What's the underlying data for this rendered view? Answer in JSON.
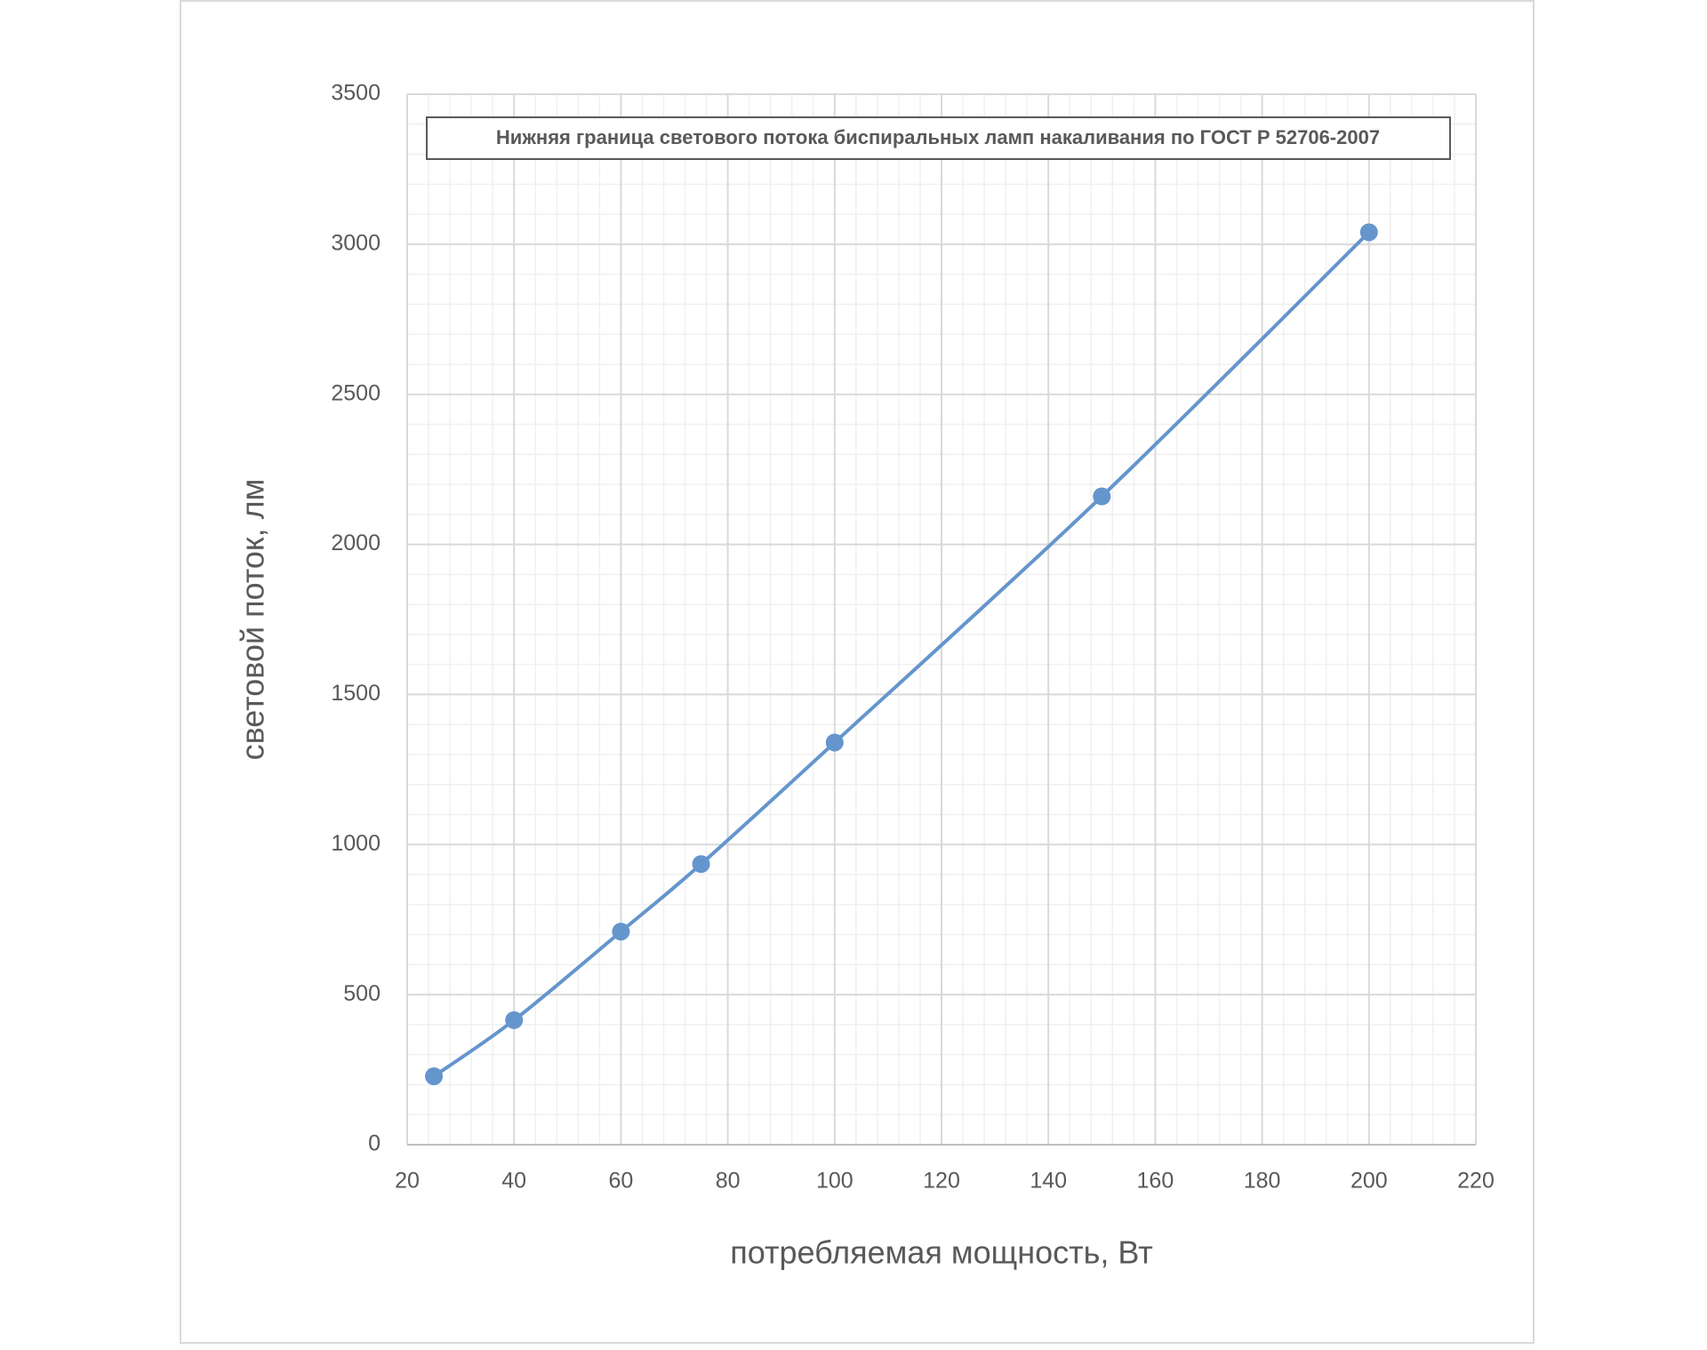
{
  "chart_data": {
    "type": "line",
    "title": "Нижняя граница светового потока биспиральных ламп накаливания по ГОСТ Р 52706-2007",
    "x_label": "потребляемая мощность, Вт",
    "y_label": "световой поток, лм",
    "x": [
      25,
      40,
      60,
      75,
      100,
      150,
      200
    ],
    "series": [
      {
        "color": "#6495cd",
        "values": [
          228,
          415,
          710,
          935,
          1340,
          2160,
          3040
        ]
      }
    ],
    "xlim": [
      20,
      220
    ],
    "xticks": [
      20,
      40,
      60,
      80,
      100,
      120,
      140,
      160,
      180,
      200,
      220
    ],
    "ylim": [
      0,
      3500
    ],
    "yticks": [
      0,
      500,
      1000,
      1500,
      2000,
      2500,
      3000,
      3500
    ],
    "grid": true,
    "minor_grid": true,
    "smooth": true
  }
}
